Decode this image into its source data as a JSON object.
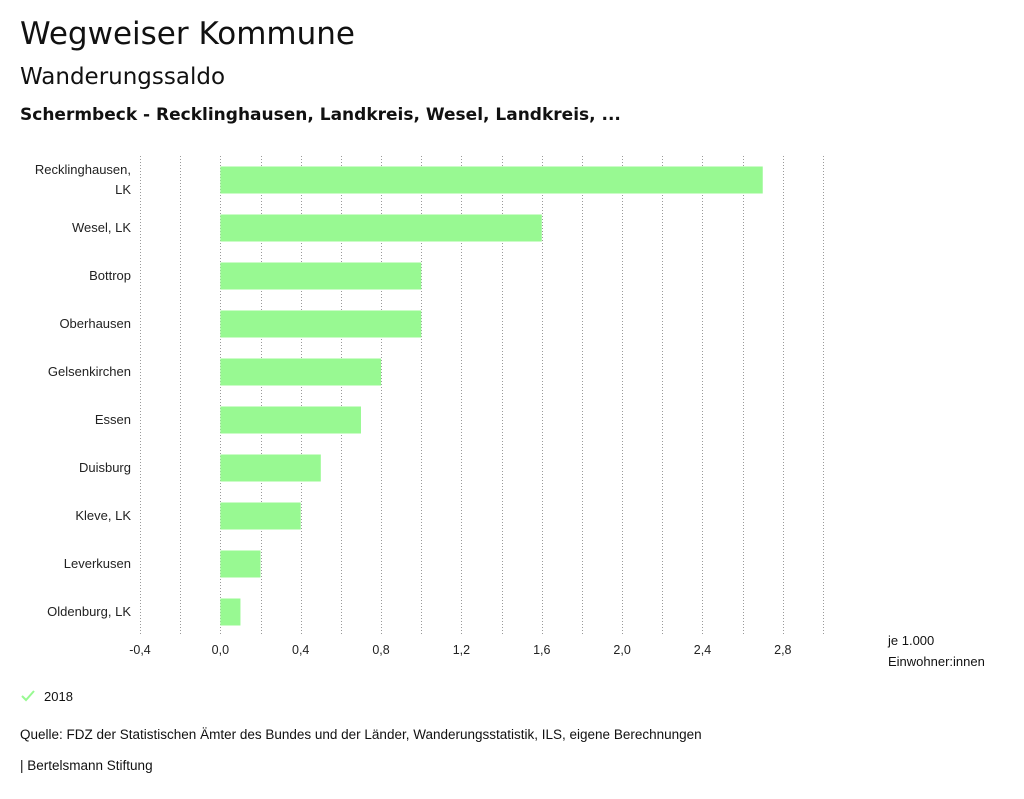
{
  "header": {
    "title": "Wegweiser Kommune",
    "subtitle": "Wanderungssaldo",
    "region": "Schermbeck - Recklinghausen, Landkreis, Wesel, Landkreis, ..."
  },
  "chart_data": {
    "type": "bar",
    "orientation": "horizontal",
    "categories": [
      "Recklinghausen, LK",
      "Wesel, LK",
      "Bottrop",
      "Oberhausen",
      "Gelsenkirchen",
      "Essen",
      "Duisburg",
      "Kleve, LK",
      "Leverkusen",
      "Oldenburg, LK"
    ],
    "series": [
      {
        "name": "2018",
        "values": [
          2.7,
          1.6,
          1.0,
          1.0,
          0.8,
          0.7,
          0.5,
          0.4,
          0.2,
          0.1
        ],
        "color": "#98f992"
      }
    ],
    "xlim": [
      -0.4,
      3.0
    ],
    "xticks": [
      "-0,4",
      "0,0",
      "0,4",
      "0,8",
      "1,2",
      "1,6",
      "2,0",
      "2,4",
      "2,8"
    ],
    "xtick_values": [
      -0.4,
      0.0,
      0.4,
      0.8,
      1.2,
      1.6,
      2.0,
      2.4,
      2.8
    ],
    "grid": "vertical-dotted",
    "unit_label": [
      "je 1.000",
      "Einwohner:innen"
    ]
  },
  "legend": {
    "label": "2018",
    "color": "#98f992"
  },
  "footer": {
    "source": "Quelle: FDZ der Statistischen Ämter des Bundes und der Länder, Wanderungsstatistik, ILS, eigene Berechnungen",
    "brand": "| Bertelsmann Stiftung"
  }
}
